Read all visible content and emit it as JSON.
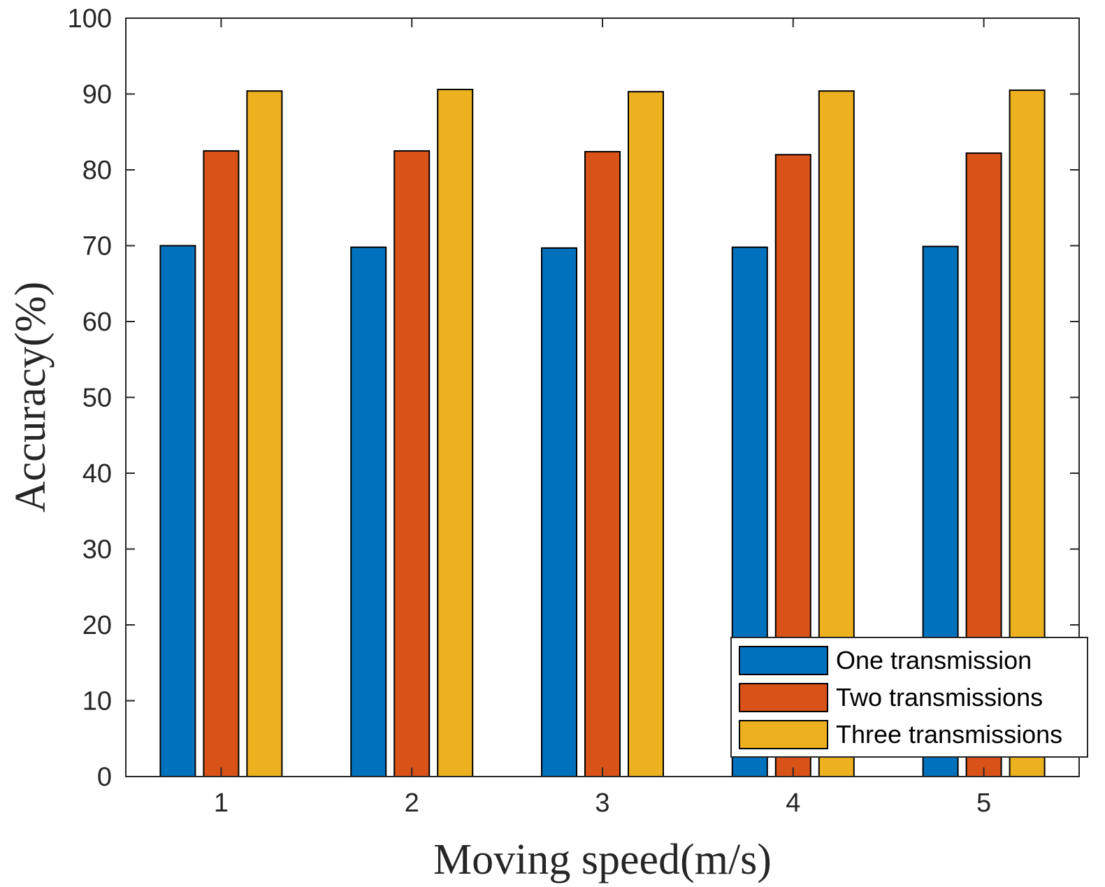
{
  "chart_data": {
    "type": "bar",
    "title": "",
    "xlabel": "Moving speed(m/s)",
    "ylabel": "Accuracy(%)",
    "categories": [
      "1",
      "2",
      "3",
      "4",
      "5"
    ],
    "ylim": [
      0,
      100
    ],
    "yticks": [
      "0",
      "10",
      "20",
      "30",
      "40",
      "50",
      "60",
      "70",
      "80",
      "90",
      "100"
    ],
    "grid": false,
    "legend_position": "bottom-right",
    "series": [
      {
        "name": "One transmission",
        "color": "#0072BD",
        "values": [
          70.0,
          69.8,
          69.7,
          69.8,
          69.9
        ]
      },
      {
        "name": "Two transmissions",
        "color": "#D95319",
        "values": [
          82.5,
          82.5,
          82.4,
          82.0,
          82.2
        ]
      },
      {
        "name": "Three transmissions",
        "color": "#EDB120",
        "values": [
          90.4,
          90.6,
          90.3,
          90.4,
          90.5
        ]
      }
    ]
  }
}
